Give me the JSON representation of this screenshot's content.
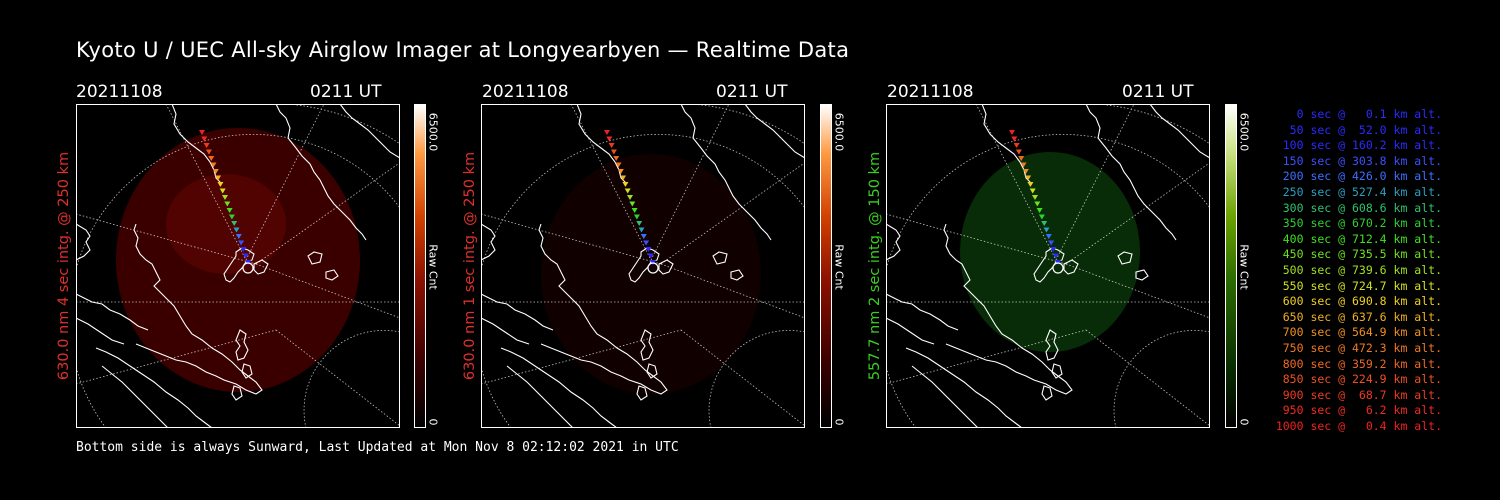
{
  "title": "Kyoto U / UEC All-sky Airglow Imager at Longyearbyen — Realtime Data",
  "footer": "Bottom side is always Sunward, Last Updated at Mon Nov  8 02:12:02 2021 in UTC",
  "panels": [
    {
      "date": "20211108",
      "time": "0211 UT",
      "side_label": "630.0 nm 4 sec intg. @ 250 km",
      "label_color": "#e0302a",
      "cbar_max": "6500.0",
      "cbar_min": "0",
      "cbar_unit": "Raw Cnt",
      "emission_color": "#6a0000",
      "emission_opacity": 0.55
    },
    {
      "date": "20211108",
      "time": "0211 UT",
      "side_label": "630.0 nm 1 sec intg. @ 250 km",
      "label_color": "#e0302a",
      "cbar_max": "6500.0",
      "cbar_min": "0",
      "cbar_unit": "Raw Cnt",
      "emission_color": "#1a0000",
      "emission_opacity": 0.6
    },
    {
      "date": "20211108",
      "time": "0211 UT",
      "side_label": "557.7 nm 2 sec intg. @ 150 km",
      "label_color": "#38d020",
      "cbar_max": "6500.0",
      "cbar_min": "0",
      "cbar_unit": "Raw Cnt",
      "emission_color": "#0b3a0b",
      "emission_opacity": 0.75
    }
  ],
  "legend": [
    {
      "text": "0 sec @   0.1 km alt.",
      "color": "#2a2aff"
    },
    {
      "text": "50 sec @  52.0 km alt.",
      "color": "#2a2aff"
    },
    {
      "text": "100 sec @ 160.2 km alt.",
      "color": "#2a2aff"
    },
    {
      "text": "150 sec @ 303.8 km alt.",
      "color": "#3a50ff"
    },
    {
      "text": "200 sec @ 426.0 km alt.",
      "color": "#3a70ff"
    },
    {
      "text": "250 sec @ 527.4 km alt.",
      "color": "#2aa0c0"
    },
    {
      "text": "300 sec @ 608.6 km alt.",
      "color": "#30c070"
    },
    {
      "text": "350 sec @ 670.2 km alt.",
      "color": "#30d030"
    },
    {
      "text": "400 sec @ 712.4 km alt.",
      "color": "#40e020"
    },
    {
      "text": "450 sec @ 735.5 km alt.",
      "color": "#70e020"
    },
    {
      "text": "500 sec @ 739.6 km alt.",
      "color": "#a0e020"
    },
    {
      "text": "550 sec @ 724.7 km alt.",
      "color": "#d0e020"
    },
    {
      "text": "600 sec @ 690.8 km alt.",
      "color": "#f0d020"
    },
    {
      "text": "650 sec @ 637.6 km alt.",
      "color": "#f0b020"
    },
    {
      "text": "700 sec @ 564.9 km alt.",
      "color": "#f09020"
    },
    {
      "text": "750 sec @ 472.3 km alt.",
      "color": "#f07820"
    },
    {
      "text": "800 sec @ 359.2 km alt.",
      "color": "#f06820"
    },
    {
      "text": "850 sec @ 224.9 km alt.",
      "color": "#f05020"
    },
    {
      "text": "900 sec @  68.7 km alt.",
      "color": "#f03a20"
    },
    {
      "text": "950 sec @   6.2 km alt.",
      "color": "#f02a20"
    },
    {
      "text": "1000 sec @   0.4 km alt.",
      "color": "#f02020"
    }
  ]
}
